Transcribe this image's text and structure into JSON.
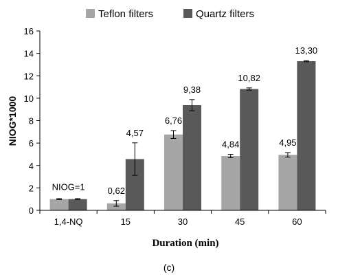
{
  "chart_data": {
    "type": "bar",
    "categories": [
      "1,4-NQ",
      "15",
      "30",
      "45",
      "60"
    ],
    "series": [
      {
        "name": "Teflon filters",
        "color": "#a6a6a6",
        "values": [
          1.0,
          0.62,
          6.76,
          4.84,
          4.95
        ],
        "errors": [
          0.05,
          0.25,
          0.35,
          0.15,
          0.2
        ],
        "labels": [
          "",
          "0,62",
          "6,76",
          "4,84",
          "4,95"
        ]
      },
      {
        "name": "Quartz filters",
        "color": "#595959",
        "values": [
          1.0,
          4.57,
          9.38,
          10.82,
          13.3
        ],
        "errors": [
          0.05,
          1.45,
          0.5,
          0.1,
          0.05
        ],
        "labels": [
          "",
          "4,57",
          "9,38",
          "10,82",
          "13,30"
        ]
      }
    ],
    "annotation": "NIOG=1",
    "xlabel": "Duration (min)",
    "ylabel": "NIOG*1000",
    "ylim": [
      0,
      16
    ],
    "yticks": [
      0,
      2,
      4,
      6,
      8,
      10,
      12,
      14,
      16
    ],
    "grid": false,
    "legend_position": "top"
  },
  "caption": "(c)"
}
